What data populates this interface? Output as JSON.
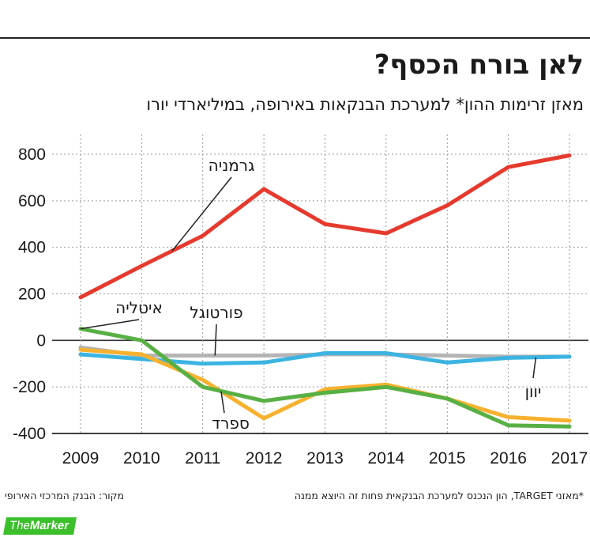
{
  "header": {
    "title": "לאן בורח הכסף?",
    "subtitle": "מאזן זרימות ההון* למערכת הבנקאות באירופה, במיליארדי יורו"
  },
  "footer": {
    "footnote": "*מאזני TARGET, הון הנכנס למערכת הבנקאית פחות זה היוצא ממנה",
    "source": "מקור: הבנק המרכזי האירופי",
    "logo_the": "The",
    "logo_marker": "Marker"
  },
  "chart_data": {
    "type": "line",
    "x": [
      "2009",
      "2010",
      "2011",
      "2012",
      "2013",
      "2014",
      "2015",
      "2016",
      "2017"
    ],
    "ylim": [
      -400,
      800
    ],
    "yticks": [
      "800",
      "600",
      "400",
      "200",
      "0",
      "-200",
      "-400"
    ],
    "grid": true,
    "series": [
      {
        "name": "גרמניה",
        "color": "#e63a2e",
        "values": [
          185,
          320,
          450,
          650,
          500,
          460,
          580,
          745,
          795
        ]
      },
      {
        "name": "איטליה",
        "color": "#58b044",
        "values": [
          50,
          0,
          -200,
          -260,
          -225,
          -200,
          -250,
          -365,
          -370
        ]
      },
      {
        "name": "פורטוגל",
        "color": "#b4b4b4",
        "values": [
          -30,
          -65,
          -65,
          -65,
          -60,
          -60,
          -65,
          -70,
          -70
        ]
      },
      {
        "name": "ספרד",
        "color": "#f7b12e",
        "values": [
          -40,
          -60,
          -170,
          -335,
          -210,
          -190,
          -250,
          -330,
          -345
        ]
      },
      {
        "name": "יוון",
        "color": "#3cb4e2",
        "values": [
          -60,
          -80,
          -100,
          -95,
          -55,
          -55,
          -95,
          -75,
          -70
        ]
      }
    ]
  }
}
